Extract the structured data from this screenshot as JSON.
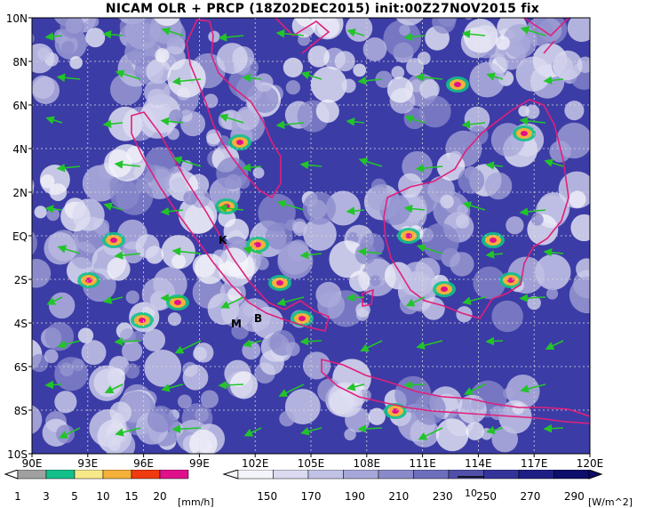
{
  "title": "NICAM OLR + PRCP (18Z02DEC2015) init:00Z27NOV2015 fix",
  "y_ticks": [
    "10N",
    "8N",
    "6N",
    "4N",
    "2N",
    "EQ",
    "2S",
    "4S",
    "6S",
    "8S",
    "10S"
  ],
  "x_ticks": [
    "90E",
    "93E",
    "96E",
    "99E",
    "102E",
    "105E",
    "108E",
    "111E",
    "114E",
    "117E",
    "120E"
  ],
  "place_labels": [
    "K",
    "M",
    "B"
  ],
  "vector_ref_label": "10",
  "precip_bar": {
    "labels": [
      "1",
      "3",
      "5",
      "10",
      "15",
      "20"
    ],
    "unit": "[mm/h]",
    "colors": [
      "#a0a0a0",
      "#14c08a",
      "#f7e98a",
      "#f5b03a",
      "#f03a10",
      "#e0108a"
    ]
  },
  "olr_bar": {
    "labels": [
      "150",
      "170",
      "190",
      "210",
      "230",
      "250",
      "270",
      "290"
    ],
    "unit": "[W/m^2]",
    "colors": [
      "#f4f4fb",
      "#dadaf0",
      "#c2c2e6",
      "#a6a6d8",
      "#8a8acb",
      "#6e6ebe",
      "#5050aa",
      "#333399",
      "#1e1e85",
      "#0d0d6a"
    ]
  },
  "colors": {
    "ocean_base": "#3c3ca6",
    "coast": "#e0207a",
    "wind": "#22c42a",
    "grid": "#dddddd"
  }
}
